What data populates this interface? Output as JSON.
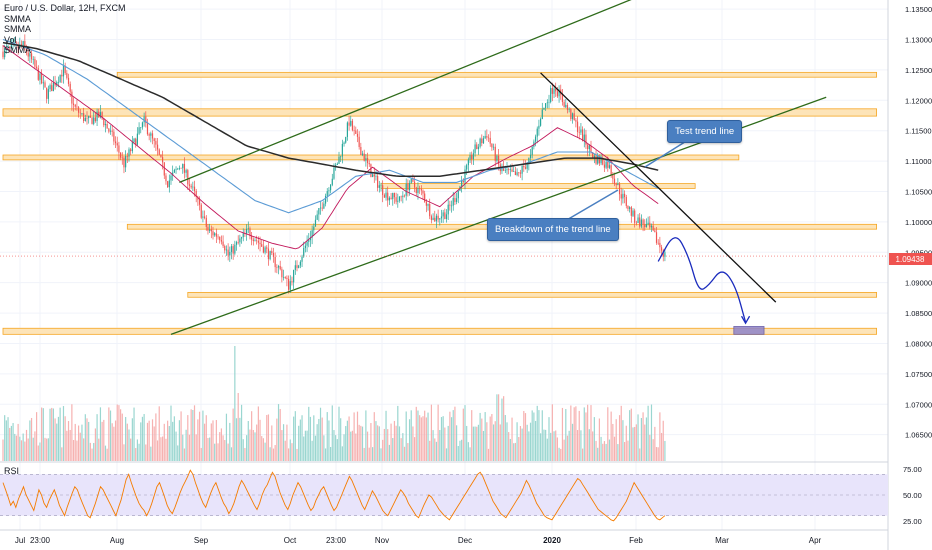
{
  "header": {
    "title": "Euro / U.S. Dollar, 12H, FXCM",
    "indicators": [
      "SMMA",
      "SMMA",
      "Vol",
      "SMMA"
    ]
  },
  "rsi": {
    "label": "RSI",
    "levels": [
      75,
      50,
      25
    ],
    "tick_labels": [
      "75.00",
      "50.00",
      "25.00"
    ],
    "band": [
      30,
      70
    ],
    "values": [
      62,
      55,
      48,
      40,
      44,
      38,
      46,
      52,
      58,
      50,
      45,
      40,
      35,
      45,
      55,
      50,
      42,
      38,
      45,
      50,
      55,
      48,
      40,
      35,
      30,
      38,
      45,
      52,
      58,
      55,
      48,
      42,
      36,
      30,
      28,
      35,
      42,
      50,
      58,
      55,
      50,
      45,
      40,
      35,
      30,
      38,
      45,
      55,
      65,
      70,
      62,
      55,
      48,
      42,
      38,
      35,
      30,
      35,
      42,
      50,
      58,
      62,
      55,
      48,
      40,
      35,
      32,
      38,
      45,
      52,
      58,
      63,
      68,
      74,
      70,
      62,
      55,
      48,
      42,
      38,
      45,
      52,
      58,
      62,
      55,
      48,
      42,
      38,
      32,
      36,
      42,
      50,
      58,
      64,
      60,
      55,
      50,
      45,
      40,
      36,
      42,
      50,
      56,
      60,
      66,
      72,
      68,
      60,
      52,
      46,
      40,
      36,
      42,
      50,
      56,
      62,
      58,
      52,
      46,
      40,
      35,
      38,
      45,
      50,
      55,
      58,
      52,
      46,
      40,
      35,
      38,
      44,
      50,
      56,
      62,
      68,
      64,
      58,
      52,
      46,
      40,
      36,
      42,
      48,
      54,
      50,
      45,
      40,
      35,
      32,
      30,
      35,
      40,
      45,
      50,
      55,
      52,
      48,
      42,
      38,
      34,
      30,
      28,
      34,
      40,
      45,
      50,
      48,
      44,
      40,
      36,
      33,
      30,
      28,
      26,
      30,
      34,
      38,
      42,
      46,
      50,
      54,
      58,
      62,
      66,
      70,
      72,
      68,
      62,
      56,
      50,
      44,
      40,
      36,
      32,
      30,
      28,
      32,
      36,
      40,
      44,
      48,
      52,
      58,
      64,
      60,
      54,
      48,
      42,
      38,
      34,
      30,
      28,
      27,
      26,
      30,
      34,
      38,
      42,
      46,
      50,
      54,
      58,
      62,
      66,
      64,
      60,
      56,
      52,
      48,
      44,
      40,
      36,
      34,
      32,
      30,
      28,
      26,
      25,
      28,
      32,
      36,
      40,
      44,
      50,
      56,
      62,
      58,
      54,
      50,
      46,
      42,
      38,
      34,
      30,
      27,
      26,
      28,
      30
    ]
  },
  "chart_data": {
    "type": "candlestick",
    "symbol": "Euro / U.S. Dollar",
    "timeframe": "12H",
    "source": "FXCM",
    "last_price": "1.09438",
    "ylim": [
      1.0605,
      1.1365
    ],
    "y_ticks": [
      "1.13500",
      "1.13000",
      "1.12500",
      "1.12000",
      "1.11500",
      "1.11000",
      "1.10500",
      "1.10000",
      "1.09500",
      "1.09000",
      "1.08500",
      "1.08000",
      "1.07500",
      "1.07000",
      "1.06500"
    ],
    "x_ticks": [
      "Jul",
      "23:00",
      "Aug",
      "Sep",
      "Oct",
      "23:00",
      "Nov",
      "Dec",
      "2020",
      "Feb",
      "Mar",
      "Apr"
    ],
    "close_path": [
      [
        0,
        1.128
      ],
      [
        12,
        1.129
      ],
      [
        18,
        1.126
      ],
      [
        26,
        1.121
      ],
      [
        36,
        1.125
      ],
      [
        42,
        1.119
      ],
      [
        50,
        1.1165
      ],
      [
        58,
        1.1175
      ],
      [
        66,
        1.1135
      ],
      [
        72,
        1.1095
      ],
      [
        84,
        1.1165
      ],
      [
        92,
        1.1115
      ],
      [
        98,
        1.1065
      ],
      [
        106,
        1.1095
      ],
      [
        114,
        1.1045
      ],
      [
        122,
        1.0985
      ],
      [
        130,
        1.0975
      ],
      [
        134,
        1.0945
      ],
      [
        146,
        1.0985
      ],
      [
        156,
        1.0955
      ],
      [
        164,
        1.0925
      ],
      [
        170,
        1.0895
      ],
      [
        176,
        1.0935
      ],
      [
        184,
        1.0985
      ],
      [
        192,
        1.1045
      ],
      [
        200,
        1.1105
      ],
      [
        206,
        1.1165
      ],
      [
        212,
        1.1125
      ],
      [
        220,
        1.1075
      ],
      [
        228,
        1.1045
      ],
      [
        236,
        1.1035
      ],
      [
        242,
        1.1065
      ],
      [
        250,
        1.1045
      ],
      [
        256,
        1.1005
      ],
      [
        264,
        1.1015
      ],
      [
        270,
        1.1045
      ],
      [
        280,
        1.1115
      ],
      [
        288,
        1.1145
      ],
      [
        296,
        1.1085
      ],
      [
        306,
        1.1075
      ],
      [
        314,
        1.1105
      ],
      [
        320,
        1.1175
      ],
      [
        328,
        1.1225
      ],
      [
        336,
        1.1185
      ],
      [
        344,
        1.1145
      ],
      [
        352,
        1.1105
      ],
      [
        360,
        1.1095
      ],
      [
        368,
        1.1045
      ],
      [
        376,
        1.1005
      ],
      [
        382,
        1.0995
      ],
      [
        386,
        1.0985
      ],
      [
        390,
        1.0965
      ],
      [
        394,
        1.0945
      ]
    ],
    "smma_fast": [
      [
        0,
        1.129
      ],
      [
        20,
        1.125
      ],
      [
        40,
        1.121
      ],
      [
        60,
        1.117
      ],
      [
        80,
        1.1125
      ],
      [
        100,
        1.108
      ],
      [
        120,
        1.103
      ],
      [
        140,
        1.0985
      ],
      [
        160,
        1.0965
      ],
      [
        175,
        1.0955
      ],
      [
        190,
        1.099
      ],
      [
        205,
        1.1055
      ],
      [
        220,
        1.109
      ],
      [
        240,
        1.105
      ],
      [
        260,
        1.1025
      ],
      [
        280,
        1.1075
      ],
      [
        300,
        1.1105
      ],
      [
        315,
        1.1125
      ],
      [
        330,
        1.1155
      ],
      [
        345,
        1.1135
      ],
      [
        360,
        1.1105
      ],
      [
        375,
        1.106
      ],
      [
        390,
        1.103
      ]
    ],
    "smma_slow": [
      [
        0,
        1.13
      ],
      [
        25,
        1.1275
      ],
      [
        50,
        1.1235
      ],
      [
        70,
        1.1195
      ],
      [
        90,
        1.1155
      ],
      [
        110,
        1.1115
      ],
      [
        130,
        1.1075
      ],
      [
        150,
        1.1035
      ],
      [
        170,
        1.1015
      ],
      [
        190,
        1.1035
      ],
      [
        210,
        1.1075
      ],
      [
        230,
        1.1085
      ],
      [
        250,
        1.1065
      ],
      [
        270,
        1.1065
      ],
      [
        290,
        1.1085
      ],
      [
        310,
        1.1095
      ],
      [
        330,
        1.1115
      ],
      [
        350,
        1.1115
      ],
      [
        370,
        1.1085
      ],
      [
        390,
        1.1055
      ]
    ],
    "smma_long": [
      [
        0,
        1.1295
      ],
      [
        20,
        1.1285
      ],
      [
        45,
        1.1265
      ],
      [
        70,
        1.1235
      ],
      [
        95,
        1.1205
      ],
      [
        120,
        1.1165
      ],
      [
        145,
        1.1125
      ],
      [
        170,
        1.1105
      ],
      [
        190,
        1.1095
      ],
      [
        210,
        1.1085
      ],
      [
        235,
        1.1075
      ],
      [
        260,
        1.1075
      ],
      [
        285,
        1.1085
      ],
      [
        310,
        1.1095
      ],
      [
        335,
        1.1105
      ],
      [
        355,
        1.1105
      ],
      [
        375,
        1.1095
      ],
      [
        390,
        1.1085
      ]
    ],
    "series": [
      {
        "name": "Channel upper",
        "kind": "trendline",
        "points": [
          [
            105,
            1.1065
          ],
          [
            400,
            1.1395
          ]
        ]
      },
      {
        "name": "Channel lower",
        "kind": "trendline",
        "points": [
          [
            100,
            1.0815
          ],
          [
            490,
            1.1205
          ]
        ]
      },
      {
        "name": "Descending trend line",
        "kind": "trendline",
        "points": [
          [
            320,
            1.1245
          ],
          [
            460,
            1.0868
          ]
        ]
      }
    ],
    "zones": [
      {
        "y0": 1.1238,
        "y1": 1.1246,
        "x0": 68,
        "x1": 520
      },
      {
        "y0": 1.1174,
        "y1": 1.1186,
        "x0": 0,
        "x1": 520
      },
      {
        "y0": 1.1102,
        "y1": 1.111,
        "x0": 0,
        "x1": 438
      },
      {
        "y0": 1.1055,
        "y1": 1.1063,
        "x0": 225,
        "x1": 412
      },
      {
        "y0": 1.0988,
        "y1": 1.0996,
        "x0": 74,
        "x1": 520
      },
      {
        "y0": 1.0876,
        "y1": 1.0884,
        "x0": 110,
        "x1": 520
      },
      {
        "y0": 1.0815,
        "y1": 1.0825,
        "x0": 0,
        "x1": 520
      }
    ],
    "projection": [
      [
        390,
        1.0935
      ],
      [
        400,
        1.0985
      ],
      [
        408,
        1.0945
      ],
      [
        414,
        1.0885
      ],
      [
        420,
        1.0895
      ],
      [
        428,
        1.0925
      ],
      [
        436,
        1.0895
      ],
      [
        442,
        1.0835
      ]
    ],
    "target_box": {
      "x0": 435,
      "x1": 453,
      "y0": 1.0815,
      "y1": 1.0828
    },
    "annotations": [
      "Test trend line",
      "Breakdown of the trend line"
    ]
  },
  "colors": {
    "bull": "#26a69a",
    "bear": "#ef5350",
    "smma_fast": "#c2185b",
    "smma_slow": "#5b9bd5",
    "smma_long": "#2b2b2b",
    "zone_fill": "#fde4b8",
    "zone_stroke": "#f5a623",
    "channel": "#2e6b1a",
    "callout": "#4a7fc1",
    "rsi_line": "#f57c00",
    "rsi_band": "#e8e4fb",
    "projection": "#1a2bbd",
    "last_price": "#ef5350"
  }
}
